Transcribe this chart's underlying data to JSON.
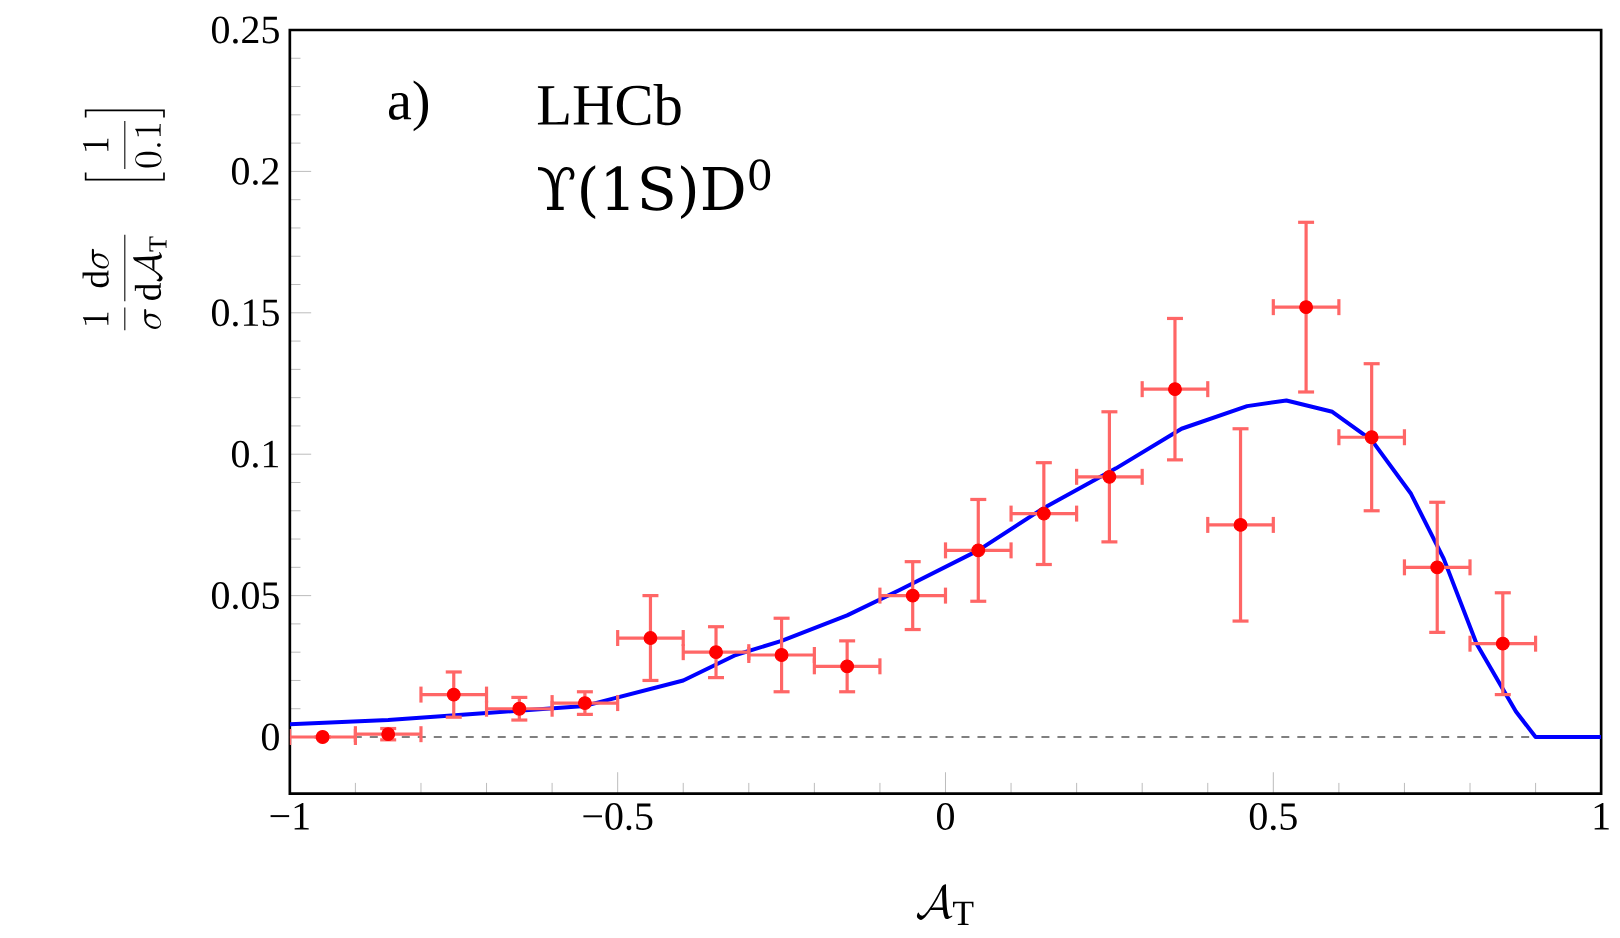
{
  "chart_data": {
    "type": "scatter",
    "xlabel": "\\mathcal{A}_{\\mathrm{T}}",
    "ylabel": "\\frac{1}{\\sigma}\\frac{\\mathrm{d}\\sigma}{\\mathrm{d}\\mathcal{A}_{\\mathrm{T}}}\\quad\\left[\\frac{1}{0.1}\\right]",
    "annotations": [
      "a)",
      "LHCb",
      "ϒ(1S)D$^{0}$"
    ],
    "x": [
      -0.95,
      -0.85,
      -0.75,
      -0.65,
      -0.55,
      -0.45,
      -0.35,
      -0.25,
      -0.15,
      -0.05,
      0.05,
      0.15,
      0.25,
      0.35,
      0.45,
      0.55,
      0.65,
      0.75,
      0.85
    ],
    "series": [
      {
        "color": "#ff0000",
        "marker": "circle",
        "values": [
          0.0,
          0.001,
          0.015,
          0.01,
          0.012,
          0.035,
          0.03,
          0.029,
          0.025,
          0.05,
          0.066,
          0.079,
          0.092,
          0.123,
          0.075,
          0.152,
          0.106,
          0.06,
          0.033
        ],
        "errors": [
          null,
          0.002,
          0.008,
          0.004,
          0.004,
          0.015,
          0.009,
          0.013,
          0.009,
          0.012,
          0.018,
          0.018,
          0.023,
          0.025,
          0.034,
          0.03,
          0.026,
          0.023,
          0.018
        ],
        "xerrors": [
          0.05,
          0.05,
          0.05,
          0.05,
          0.05,
          0.05,
          0.05,
          0.05,
          0.05,
          0.05,
          0.05,
          0.05,
          0.05,
          0.05,
          0.05,
          0.05,
          0.05,
          0.05,
          0.05
        ]
      },
      {
        "type": "line",
        "color": "#0000ff",
        "marker": "none",
        "line_style": "solid",
        "x": [
          -1.0,
          -0.85,
          -0.7,
          -0.55,
          -0.4,
          -0.32,
          -0.25,
          -0.15,
          -0.07,
          0.05,
          0.15,
          0.26,
          0.36,
          0.46,
          0.52,
          0.59,
          0.65,
          0.71,
          0.76,
          0.81,
          0.87,
          0.9,
          1.0
        ],
        "values": [
          0.0045,
          0.006,
          0.0085,
          0.011,
          0.02,
          0.029,
          0.034,
          0.043,
          0.052,
          0.066,
          0.081,
          0.095,
          0.109,
          0.117,
          0.119,
          0.115,
          0.105,
          0.086,
          0.063,
          0.033,
          0.009,
          0.0,
          0.0
        ]
      }
    ],
    "ref_lines": [
      {
        "axis": "y",
        "value": 0,
        "color": "#808080",
        "line_style": "dashed"
      }
    ],
    "xlim": [
      -1,
      1
    ],
    "ylim": [
      -0.02,
      0.25
    ],
    "xticks": [
      {
        "value": -1,
        "label": "−1"
      },
      {
        "value": -0.5,
        "label": "−0.5"
      },
      0,
      0.5,
      1
    ],
    "yticks": [
      0,
      0.05,
      0.1,
      0.15,
      0.2,
      0.25
    ],
    "grid": false
  }
}
